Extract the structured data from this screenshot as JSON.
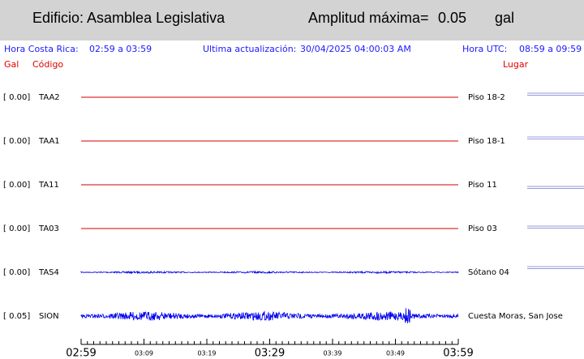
{
  "header": {
    "building": "Edificio: Asamblea Legislativa",
    "max_label": "Amplitud máxima=",
    "max_value": "0.05",
    "unit": "gal"
  },
  "info": {
    "local_label": "Hora Costa Rica:",
    "local_range": "02:59 a 03:59",
    "update_label": "Ultima actualización:",
    "update_value": "30/04/2025 04:00:03 AM",
    "utc_label": "Hora UTC:",
    "utc_range": "08:59 a 09:59"
  },
  "columns": {
    "gal": "Gal",
    "code": "Código",
    "place": "Lugar"
  },
  "channels": [
    {
      "amplitude": "[  0.00]",
      "code": "TAA2",
      "place": "Piso 18-2",
      "color": "#d00000"
    },
    {
      "amplitude": "[  0.00]",
      "code": "TAA1",
      "place": "Piso 18-1",
      "color": "#d00000"
    },
    {
      "amplitude": "[  0.00]",
      "code": "TA11",
      "place": "Piso 11",
      "color": "#d00000"
    },
    {
      "amplitude": "[  0.00]",
      "code": "TA03",
      "place": "Piso 03",
      "color": "#d00000"
    },
    {
      "amplitude": "[  0.00]",
      "code": "TAS4",
      "place": "Sótano 04",
      "color": "#0000ee"
    },
    {
      "amplitude": "[  0.05]",
      "code": "SION",
      "place": "Cuesta Moras, San Jose",
      "color": "#0000ee"
    }
  ],
  "time_axis": [
    "02:59",
    "03:09",
    "03:19",
    "03:29",
    "03:39",
    "03:49",
    "03:59"
  ]
}
